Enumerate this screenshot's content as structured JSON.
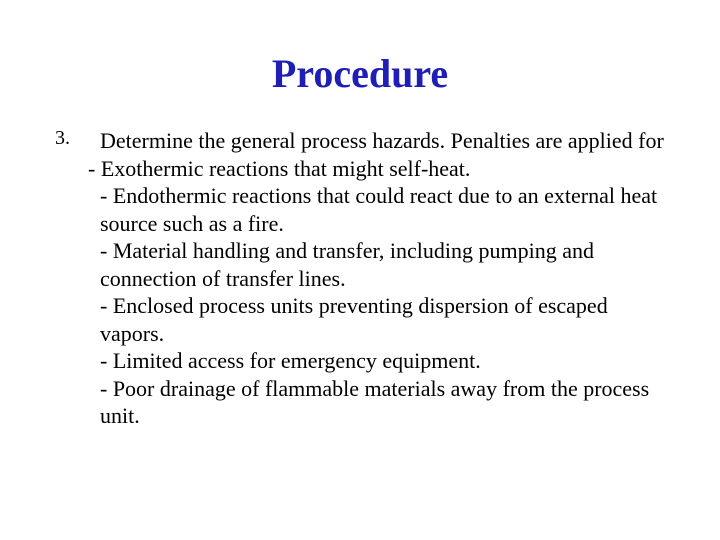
{
  "title": {
    "text": "Procedure",
    "color": "#1f1fb5",
    "fontsize": 40
  },
  "body": {
    "color": "#000000",
    "fontsize": 22,
    "number_fontsize": 20
  },
  "list": {
    "number": "3.",
    "intro": "Determine the general process hazards.  Penalties are applied for",
    "bullets": [
      "- Exothermic reactions that might self-heat.",
      "- Endothermic reactions that could react   due to an external heat source such as a fire.",
      "- Material handling and transfer, including pumping and connection of transfer lines.",
      "- Enclosed process units preventing dispersion of escaped vapors.",
      "- Limited access for emergency equipment.",
      "- Poor drainage of flammable materials away from the process unit."
    ]
  }
}
